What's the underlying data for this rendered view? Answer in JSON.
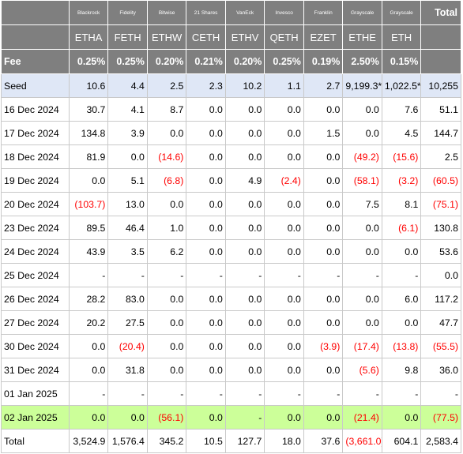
{
  "header": {
    "issuers": [
      "Blackrock",
      "Fidelity",
      "Bitwise",
      "21 Shares",
      "VanEck",
      "Invesco",
      "Franklin",
      "Grayscale",
      "Grayscale"
    ],
    "total_label": "Total",
    "tickers": [
      "ETHA",
      "FETH",
      "ETHW",
      "CETH",
      "ETHV",
      "QETH",
      "EZET",
      "ETHE",
      "ETH"
    ],
    "fee_label": "Fee",
    "fees": [
      "0.25%",
      "0.25%",
      "0.20%",
      "0.21%",
      "0.20%",
      "0.25%",
      "0.19%",
      "2.50%",
      "0.15%"
    ]
  },
  "rows": [
    {
      "date": "Seed",
      "values": [
        "10.6",
        "4.4",
        "2.5",
        "2.3",
        "10.2",
        "1.1",
        "2.7",
        "9,199.3*",
        "1,022.5*"
      ],
      "total": "10,255"
    },
    {
      "date": "16 Dec 2024",
      "values": [
        "30.7",
        "4.1",
        "8.7",
        "0.0",
        "0.0",
        "0.0",
        "0.0",
        "0.0",
        "7.6"
      ],
      "total": "51.1"
    },
    {
      "date": "17 Dec 2024",
      "values": [
        "134.8",
        "3.9",
        "0.0",
        "0.0",
        "0.0",
        "0.0",
        "1.5",
        "0.0",
        "4.5"
      ],
      "total": "144.7"
    },
    {
      "date": "18 Dec 2024",
      "values": [
        "81.9",
        "0.0",
        "(14.6)",
        "0.0",
        "0.0",
        "0.0",
        "0.0",
        "(49.2)",
        "(15.6)"
      ],
      "total": "2.5"
    },
    {
      "date": "19 Dec 2024",
      "values": [
        "0.0",
        "5.1",
        "(6.8)",
        "0.0",
        "4.9",
        "(2.4)",
        "0.0",
        "(58.1)",
        "(3.2)"
      ],
      "total": "(60.5)"
    },
    {
      "date": "20 Dec 2024",
      "values": [
        "(103.7)",
        "13.0",
        "0.0",
        "0.0",
        "0.0",
        "0.0",
        "0.0",
        "7.5",
        "8.1"
      ],
      "total": "(75.1)"
    },
    {
      "date": "23 Dec 2024",
      "values": [
        "89.5",
        "46.4",
        "1.0",
        "0.0",
        "0.0",
        "0.0",
        "0.0",
        "0.0",
        "(6.1)"
      ],
      "total": "130.8"
    },
    {
      "date": "24 Dec 2024",
      "values": [
        "43.9",
        "3.5",
        "6.2",
        "0.0",
        "0.0",
        "0.0",
        "0.0",
        "0.0",
        "0.0"
      ],
      "total": "53.6"
    },
    {
      "date": "25 Dec 2024",
      "values": [
        "-",
        "-",
        "-",
        "-",
        "-",
        "-",
        "-",
        "-",
        "-"
      ],
      "total": "0.0"
    },
    {
      "date": "26 Dec 2024",
      "values": [
        "28.2",
        "83.0",
        "0.0",
        "0.0",
        "0.0",
        "0.0",
        "0.0",
        "0.0",
        "6.0"
      ],
      "total": "117.2"
    },
    {
      "date": "27 Dec 2024",
      "values": [
        "20.2",
        "27.5",
        "0.0",
        "0.0",
        "0.0",
        "0.0",
        "0.0",
        "0.0",
        "0.0"
      ],
      "total": "47.7"
    },
    {
      "date": "30 Dec 2024",
      "values": [
        "0.0",
        "(20.4)",
        "0.0",
        "0.0",
        "0.0",
        "0.0",
        "(3.9)",
        "(17.4)",
        "(13.8)"
      ],
      "total": "(55.5)"
    },
    {
      "date": "31 Dec 2024",
      "values": [
        "0.0",
        "31.8",
        "0.0",
        "0.0",
        "0.0",
        "0.0",
        "0.0",
        "(5.6)",
        "9.8"
      ],
      "total": "36.0"
    },
    {
      "date": "01 Jan 2025",
      "values": [
        "-",
        "-",
        "-",
        "-",
        "-",
        "-",
        "-",
        "-",
        "-"
      ],
      "total": "-"
    },
    {
      "date": "02 Jan 2025",
      "values": [
        "0.0",
        "0.0",
        "(56.1)",
        "0.0",
        "-",
        "0.0",
        "0.0",
        "(21.4)",
        "0.0"
      ],
      "total": "(77.5)"
    }
  ],
  "totals": {
    "label": "Total",
    "values": [
      "3,524.9",
      "1,576.4",
      "345.2",
      "10.5",
      "127.7",
      "18.0",
      "37.6",
      "(3,661.0)",
      "604.1"
    ],
    "total": "2,583.4"
  },
  "colors": {
    "header_bg": "#7f7f7f",
    "seed_bg": "#dfe7f6",
    "highlight_bg": "#ccff99",
    "negative_text": "#ff0000"
  }
}
